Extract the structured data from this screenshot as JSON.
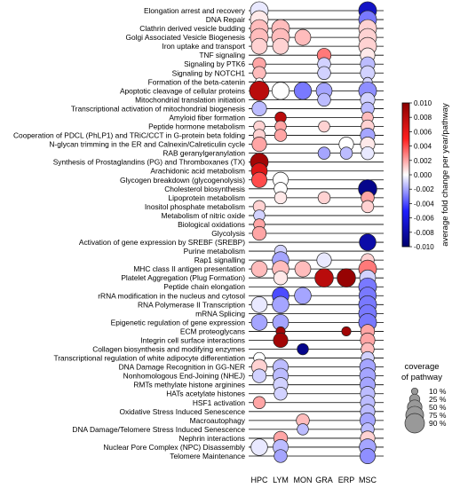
{
  "chart_data": {
    "type": "bubble-dotplot",
    "title": "",
    "xlabel": "",
    "ylabel": "",
    "columns": [
      "HPC",
      "LYM",
      "MON",
      "GRA",
      "ERP",
      "MSC"
    ],
    "pathways": [
      "Elongation arrest and recovery",
      "DNA Repair",
      "Clathrin derived vesicle budding",
      "Golgi Associated Vesicle Biogenesis",
      "Iron uptake and transport",
      "TNF signaling",
      "Signaling by PTK6",
      "Signaling by NOTCH1",
      "Formation of the beta-catenin",
      "Apoptotic cleavage of cellular proteins",
      "Mitochondrial translation initiation",
      "Transcriptional activation of mitochondrial biogenesis",
      "Amyloid fiber formation",
      "Peptide hormone metabolism",
      "Cooperation of PDCL (PhLP1) and TRiC/CCT in G-protein beta folding",
      "N-glycan trimming in the ER and Calnexin/Calreticulin cycle",
      "RAB geranylgeranylation",
      "Synthesis of Prostaglandins (PG) and Thromboxanes (TX)",
      "Arachidonic acid metabolism",
      "Glycogen breakdown (glycogenolysis)",
      "Cholesterol biosynthesis",
      "Lipoprotein metabolism",
      "Inositol phosphate metabolism",
      "Metabolism of nitric oxide",
      "Biological oxidations",
      "Glycolysis",
      "Activation of gene expression by SREBF (SREBP)",
      "Purine metabolism",
      "Rap1 signalling",
      "MHC class II antigen presentation",
      "Platelet Aggregation (Plug Formation)",
      "Peptide chain elongation",
      "rRNA modification in the nucleus and cytosol",
      "RNA Polymerase II Transcription",
      "mRNA Splicing",
      "Epigenetic regulation of gene expression",
      "ECM proteoglycans",
      "Integrin cell surface interactions",
      "Collagen biosynthesis and modifying enzymes",
      "Transcriptional regulation of white adipocyte differentiation",
      "DNA Damage Recognition in GG-NER",
      "Nonhomologous End-Joining (NHEJ)",
      "RMTs methylate histone arginines",
      "HATs acetylate histones",
      "HSF1 activation",
      "Oxidative Stress Induced Senescence",
      "Macroautophagy",
      "DNA Damage/Telomere Stress Induced Senescence",
      "Nephrin interactions",
      "Nuclear Pore Complex (NPC) Disassembly",
      "Telomere Maintenance"
    ],
    "points": [
      {
        "row": 0,
        "col": "HPC",
        "change": -0.0005,
        "coverage": 0.75
      },
      {
        "row": 0,
        "col": "MSC",
        "change": -0.007,
        "coverage": 0.75
      },
      {
        "row": 1,
        "col": "HPC",
        "change": 0.0005,
        "coverage": 0.75
      },
      {
        "row": 1,
        "col": "MSC",
        "change": -0.003,
        "coverage": 0.75
      },
      {
        "row": 2,
        "col": "HPC",
        "change": 0.0015,
        "coverage": 0.75
      },
      {
        "row": 2,
        "col": "LYM",
        "change": 0.0015,
        "coverage": 0.75
      },
      {
        "row": 2,
        "col": "MSC",
        "change": 0.001,
        "coverage": 0.75
      },
      {
        "row": 3,
        "col": "HPC",
        "change": 0.0015,
        "coverage": 0.75
      },
      {
        "row": 3,
        "col": "LYM",
        "change": 0.0015,
        "coverage": 0.75
      },
      {
        "row": 3,
        "col": "MON",
        "change": 0.0015,
        "coverage": 0.6
      },
      {
        "row": 3,
        "col": "MSC",
        "change": 0.001,
        "coverage": 0.75
      },
      {
        "row": 4,
        "col": "HPC",
        "change": 0.001,
        "coverage": 0.6
      },
      {
        "row": 4,
        "col": "LYM",
        "change": 0.001,
        "coverage": 0.6
      },
      {
        "row": 4,
        "col": "MSC",
        "change": 0.001,
        "coverage": 0.75
      },
      {
        "row": 5,
        "col": "GRA",
        "change": 0.003,
        "coverage": 0.45
      },
      {
        "row": 5,
        "col": "MSC",
        "change": 0.0005,
        "coverage": 0.5
      },
      {
        "row": 6,
        "col": "HPC",
        "change": 0.002,
        "coverage": 0.4
      },
      {
        "row": 6,
        "col": "GRA",
        "change": -0.001,
        "coverage": 0.4
      },
      {
        "row": 6,
        "col": "MSC",
        "change": -0.0015,
        "coverage": 0.5
      },
      {
        "row": 7,
        "col": "HPC",
        "change": 0.0015,
        "coverage": 0.4
      },
      {
        "row": 7,
        "col": "GRA",
        "change": -0.001,
        "coverage": 0.4
      },
      {
        "row": 7,
        "col": "MSC",
        "change": -0.001,
        "coverage": 0.5
      },
      {
        "row": 8,
        "col": "HPC",
        "change": 0.0,
        "coverage": 0.15
      },
      {
        "row": 8,
        "col": "MSC",
        "change": -0.001,
        "coverage": 0.2
      },
      {
        "row": 9,
        "col": "HPC",
        "change": 0.008,
        "coverage": 0.9
      },
      {
        "row": 9,
        "col": "LYM",
        "change": 0.0,
        "coverage": 0.7
      },
      {
        "row": 9,
        "col": "MON",
        "change": -0.003,
        "coverage": 0.7
      },
      {
        "row": 9,
        "col": "GRA",
        "change": -0.002,
        "coverage": 0.6
      },
      {
        "row": 9,
        "col": "MSC",
        "change": -0.0025,
        "coverage": 0.75
      },
      {
        "row": 10,
        "col": "GRA",
        "change": -0.0015,
        "coverage": 0.4
      },
      {
        "row": 10,
        "col": "MSC",
        "change": -0.001,
        "coverage": 0.5
      },
      {
        "row": 11,
        "col": "HPC",
        "change": -0.0015,
        "coverage": 0.5
      },
      {
        "row": 11,
        "col": "MSC",
        "change": -0.0015,
        "coverage": 0.4
      },
      {
        "row": 12,
        "col": "LYM",
        "change": 0.008,
        "coverage": 0.3
      },
      {
        "row": 12,
        "col": "MSC",
        "change": 0.0015,
        "coverage": 0.3
      },
      {
        "row": 13,
        "col": "HPC",
        "change": 0.001,
        "coverage": 0.3
      },
      {
        "row": 13,
        "col": "LYM",
        "change": 0.002,
        "coverage": 0.3
      },
      {
        "row": 13,
        "col": "GRA",
        "change": 0.001,
        "coverage": 0.3
      },
      {
        "row": 13,
        "col": "MSC",
        "change": 0.001,
        "coverage": 0.4
      },
      {
        "row": 14,
        "col": "HPC",
        "change": 0.001,
        "coverage": 0.35
      },
      {
        "row": 14,
        "col": "LYM",
        "change": 0.002,
        "coverage": 0.35
      },
      {
        "row": 14,
        "col": "MSC",
        "change": -0.002,
        "coverage": 0.5
      },
      {
        "row": 15,
        "col": "HPC",
        "change": 0.002,
        "coverage": 0.5
      },
      {
        "row": 15,
        "col": "ERP",
        "change": 0.0,
        "coverage": 0.5
      },
      {
        "row": 15,
        "col": "MSC",
        "change": 0.0005,
        "coverage": 0.5
      },
      {
        "row": 16,
        "col": "GRA",
        "change": -0.002,
        "coverage": 0.35
      },
      {
        "row": 16,
        "col": "ERP",
        "change": -0.0015,
        "coverage": 0.35
      },
      {
        "row": 16,
        "col": "MSC",
        "change": -0.0005,
        "coverage": 0.4
      },
      {
        "row": 17,
        "col": "HPC",
        "change": 0.009,
        "coverage": 0.75
      },
      {
        "row": 18,
        "col": "HPC",
        "change": 0.0065,
        "coverage": 0.6
      },
      {
        "row": 19,
        "col": "HPC",
        "change": 0.004,
        "coverage": 0.55
      },
      {
        "row": 19,
        "col": "LYM",
        "change": 0.0,
        "coverage": 0.55
      },
      {
        "row": 20,
        "col": "LYM",
        "change": 0.0,
        "coverage": 0.4
      },
      {
        "row": 20,
        "col": "MSC",
        "change": -0.009,
        "coverage": 0.8
      },
      {
        "row": 21,
        "col": "LYM",
        "change": 0.0005,
        "coverage": 0.35
      },
      {
        "row": 21,
        "col": "GRA",
        "change": 0.001,
        "coverage": 0.35
      },
      {
        "row": 21,
        "col": "MSC",
        "change": 0.002,
        "coverage": 0.4
      },
      {
        "row": 22,
        "col": "HPC",
        "change": 0.001,
        "coverage": 0.35
      },
      {
        "row": 22,
        "col": "MSC",
        "change": 0.001,
        "coverage": 0.35
      },
      {
        "row": 23,
        "col": "HPC",
        "change": -0.001,
        "coverage": 0.3
      },
      {
        "row": 24,
        "col": "HPC",
        "change": 0.002,
        "coverage": 0.3
      },
      {
        "row": 25,
        "col": "HPC",
        "change": 0.002,
        "coverage": 0.45
      },
      {
        "row": 26,
        "col": "MSC",
        "change": -0.008,
        "coverage": 0.65
      },
      {
        "row": 27,
        "col": "LYM",
        "change": -0.001,
        "coverage": 0.35
      },
      {
        "row": 28,
        "col": "LYM",
        "change": -0.002,
        "coverage": 0.65
      },
      {
        "row": 28,
        "col": "GRA",
        "change": -0.0005,
        "coverage": 0.5
      },
      {
        "row": 28,
        "col": "MSC",
        "change": 0.001,
        "coverage": 0.4
      },
      {
        "row": 29,
        "col": "HPC",
        "change": 0.0015,
        "coverage": 0.6
      },
      {
        "row": 29,
        "col": "LYM",
        "change": 0.0015,
        "coverage": 0.65
      },
      {
        "row": 29,
        "col": "MON",
        "change": 0.0015,
        "coverage": 0.6
      },
      {
        "row": 29,
        "col": "MSC",
        "change": 0.003,
        "coverage": 0.75
      },
      {
        "row": 30,
        "col": "LYM",
        "change": 0.0005,
        "coverage": 0.45
      },
      {
        "row": 30,
        "col": "GRA",
        "change": 0.008,
        "coverage": 0.8
      },
      {
        "row": 30,
        "col": "ERP",
        "change": 0.0095,
        "coverage": 0.8
      },
      {
        "row": 30,
        "col": "MSC",
        "change": -0.001,
        "coverage": 0.6
      },
      {
        "row": 31,
        "col": "MSC",
        "change": -0.003,
        "coverage": 0.75
      },
      {
        "row": 32,
        "col": "LYM",
        "change": -0.004,
        "coverage": 0.65
      },
      {
        "row": 32,
        "col": "MON",
        "change": -0.002,
        "coverage": 0.65
      },
      {
        "row": 32,
        "col": "MSC",
        "change": -0.003,
        "coverage": 0.7
      },
      {
        "row": 33,
        "col": "HPC",
        "change": -0.0005,
        "coverage": 0.6
      },
      {
        "row": 33,
        "col": "LYM",
        "change": -0.002,
        "coverage": 0.65
      },
      {
        "row": 33,
        "col": "MSC",
        "change": -0.003,
        "coverage": 0.75
      },
      {
        "row": 34,
        "col": "MSC",
        "change": -0.003,
        "coverage": 0.75
      },
      {
        "row": 35,
        "col": "HPC",
        "change": -0.002,
        "coverage": 0.6
      },
      {
        "row": 35,
        "col": "LYM",
        "change": -0.002,
        "coverage": 0.6
      },
      {
        "row": 35,
        "col": "MSC",
        "change": -0.003,
        "coverage": 0.75
      },
      {
        "row": 36,
        "col": "LYM",
        "change": 0.009,
        "coverage": 0.2
      },
      {
        "row": 36,
        "col": "ERP",
        "change": 0.009,
        "coverage": 0.2
      },
      {
        "row": 36,
        "col": "MSC",
        "change": 0.002,
        "coverage": 0.45
      },
      {
        "row": 37,
        "col": "LYM",
        "change": 0.009,
        "coverage": 0.5
      },
      {
        "row": 37,
        "col": "MSC",
        "change": 0.002,
        "coverage": 0.5
      },
      {
        "row": 38,
        "col": "MON",
        "change": -0.009,
        "coverage": 0.3
      },
      {
        "row": 38,
        "col": "MSC",
        "change": 0.0015,
        "coverage": 0.4
      },
      {
        "row": 39,
        "col": "HPC",
        "change": 0.0,
        "coverage": 0.3
      },
      {
        "row": 39,
        "col": "MSC",
        "change": -0.001,
        "coverage": 0.4
      },
      {
        "row": 40,
        "col": "HPC",
        "change": 0.001,
        "coverage": 0.55
      },
      {
        "row": 40,
        "col": "LYM",
        "change": -0.0015,
        "coverage": 0.55
      },
      {
        "row": 40,
        "col": "MSC",
        "change": -0.002,
        "coverage": 0.6
      },
      {
        "row": 41,
        "col": "HPC",
        "change": -0.001,
        "coverage": 0.45
      },
      {
        "row": 41,
        "col": "LYM",
        "change": -0.0015,
        "coverage": 0.55
      },
      {
        "row": 41,
        "col": "MSC",
        "change": -0.002,
        "coverage": 0.6
      },
      {
        "row": 42,
        "col": "LYM",
        "change": -0.001,
        "coverage": 0.5
      },
      {
        "row": 42,
        "col": "MSC",
        "change": -0.002,
        "coverage": 0.55
      },
      {
        "row": 43,
        "col": "LYM",
        "change": -0.001,
        "coverage": 0.4
      },
      {
        "row": 43,
        "col": "MSC",
        "change": -0.0015,
        "coverage": 0.5
      },
      {
        "row": 44,
        "col": "HPC",
        "change": 0.002,
        "coverage": 0.35
      },
      {
        "row": 44,
        "col": "MSC",
        "change": -0.0015,
        "coverage": 0.5
      },
      {
        "row": 45,
        "col": "MSC",
        "change": -0.0015,
        "coverage": 0.5
      },
      {
        "row": 46,
        "col": "MON",
        "change": 0.0015,
        "coverage": 0.4
      },
      {
        "row": 46,
        "col": "MSC",
        "change": -0.002,
        "coverage": 0.55
      },
      {
        "row": 47,
        "col": "MON",
        "change": -0.0015,
        "coverage": 0.3
      },
      {
        "row": 47,
        "col": "MSC",
        "change": -0.0015,
        "coverage": 0.4
      },
      {
        "row": 48,
        "col": "LYM",
        "change": 0.002,
        "coverage": 0.45
      },
      {
        "row": 48,
        "col": "MSC",
        "change": 0.001,
        "coverage": 0.5
      },
      {
        "row": 49,
        "col": "HPC",
        "change": -0.0005,
        "coverage": 0.65
      },
      {
        "row": 49,
        "col": "LYM",
        "change": -0.0015,
        "coverage": 0.55
      },
      {
        "row": 49,
        "col": "MSC",
        "change": -0.002,
        "coverage": 0.65
      },
      {
        "row": 50,
        "col": "LYM",
        "change": -0.002,
        "coverage": 0.4
      },
      {
        "row": 50,
        "col": "MSC",
        "change": -0.0025,
        "coverage": 0.55
      }
    ],
    "colorbar": {
      "label": "average fold change per year/pathway",
      "range": [
        -0.01,
        0.01
      ],
      "ticks": [
        0.01,
        0.008,
        0.006,
        0.004,
        0.002,
        0.0,
        -0.002,
        -0.004,
        -0.006,
        -0.008,
        -0.01
      ],
      "tick_labels": [
        "0.010",
        "0.008",
        "0.006",
        "0.004",
        "0.002",
        "0.000",
        "-0.002",
        "-0.004",
        "-0.006",
        "-0.008",
        "-0.010"
      ],
      "colors": {
        "negative": "#00006e",
        "mid": "#ffffff",
        "positive": "#8b0000"
      }
    },
    "size_legend": {
      "title": "coverage of pathway",
      "title_lines": [
        "coverage",
        "of pathway"
      ],
      "values": [
        0.1,
        0.25,
        0.5,
        0.75,
        0.9
      ],
      "labels": [
        "10 %",
        "25 %",
        "50 %",
        "75 %",
        "90 %"
      ]
    },
    "gridlines": "horizontal",
    "legend_placement": "right"
  }
}
